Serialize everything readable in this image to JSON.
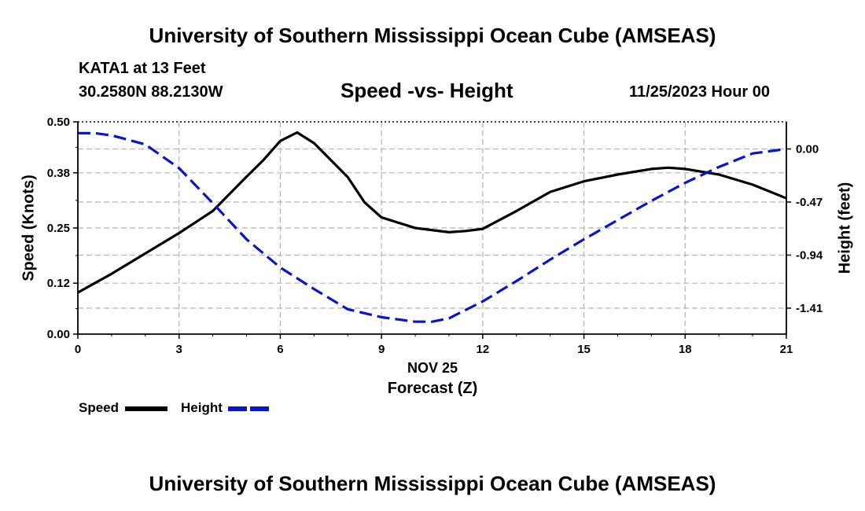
{
  "header": {
    "title": "University of Southern Mississippi Ocean Cube (AMSEAS)",
    "station": "KATA1 at 13 Feet",
    "location": "30.2580N  88.2130W",
    "subtitle": "Speed -vs- Height",
    "datetime": "11/25/2023 Hour 00"
  },
  "footer": {
    "title": "University of Southern Mississippi Ocean Cube (AMSEAS)"
  },
  "chart_data": {
    "type": "line",
    "title": "Speed -vs- Height",
    "xlabel_line1": "NOV 25",
    "xlabel": "Forecast (Z)",
    "ylabel": "Speed (Knots)",
    "y2label": "Height (feet)",
    "xlim": [
      0,
      21
    ],
    "ylim": [
      0,
      0.5
    ],
    "y2lim": [
      -1.64,
      0.24
    ],
    "x_ticks": [
      "0",
      "3",
      "6",
      "9",
      "12",
      "15",
      "18",
      "21"
    ],
    "y_ticks": [
      "0.00",
      "0.12",
      "0.25",
      "0.38",
      "0.50"
    ],
    "y2_ticks": [
      "0.00",
      "-0.47",
      "-0.94",
      "-1.41"
    ],
    "grid": true,
    "series": [
      {
        "name": "Speed",
        "axis": "left",
        "color": "#000000",
        "dash": "solid",
        "x": [
          0,
          1,
          2,
          3,
          4,
          5,
          5.5,
          6,
          6.5,
          7,
          8,
          8.5,
          9,
          10,
          11,
          11.5,
          12,
          13,
          14,
          15,
          16,
          17,
          17.5,
          18,
          19,
          20,
          21
        ],
        "values": [
          0.098,
          0.142,
          0.19,
          0.238,
          0.29,
          0.371,
          0.41,
          0.455,
          0.475,
          0.45,
          0.37,
          0.31,
          0.275,
          0.25,
          0.24,
          0.243,
          0.248,
          0.29,
          0.335,
          0.36,
          0.376,
          0.389,
          0.392,
          0.389,
          0.376,
          0.352,
          0.32
        ]
      },
      {
        "name": "Height",
        "axis": "right",
        "color": "#0a14c8",
        "dash": "dashed",
        "x": [
          0,
          0.5,
          1,
          2,
          3,
          4,
          5,
          6,
          7,
          8,
          9,
          10,
          10.5,
          11,
          12,
          13,
          14,
          15,
          16,
          17,
          18,
          19,
          20,
          21
        ],
        "values": [
          0.14,
          0.14,
          0.12,
          0.04,
          -0.17,
          -0.48,
          -0.8,
          -1.05,
          -1.24,
          -1.42,
          -1.49,
          -1.53,
          -1.53,
          -1.5,
          -1.35,
          -1.17,
          -0.98,
          -0.8,
          -0.63,
          -0.46,
          -0.3,
          -0.16,
          -0.04,
          0.0
        ]
      }
    ]
  },
  "legend": {
    "items": [
      {
        "label": "Speed",
        "color": "#000000",
        "dash": "solid"
      },
      {
        "label": "Height",
        "color": "#0a14c8",
        "dash": "dashed"
      }
    ]
  }
}
